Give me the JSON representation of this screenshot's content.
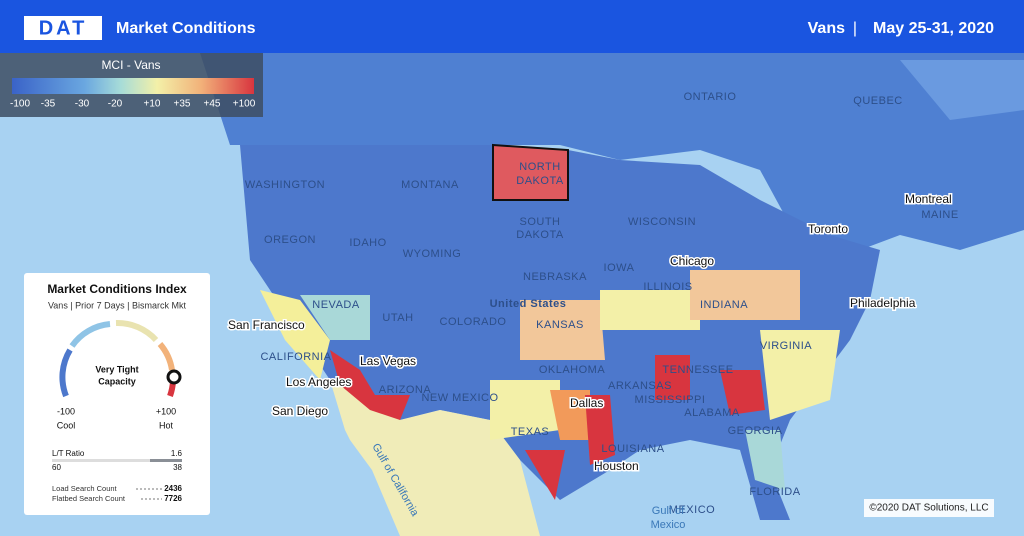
{
  "header": {
    "logo": "DAT",
    "title": "Market Conditions",
    "equipment": "Vans",
    "separator": "|",
    "date_range": "May 25-31, 2020"
  },
  "legend": {
    "title": "MCI - Vans",
    "scale": [
      "-100",
      "-35",
      "-30",
      "-20",
      "+10",
      "+35",
      "+45",
      "+100"
    ]
  },
  "map": {
    "labels": [
      "ONTARIO",
      "QUEBEC",
      "WASHINGTON",
      "MONTANA",
      "NORTH",
      "DAKOTA",
      "SOUTH",
      "DAKOTA",
      "OREGON",
      "IDAHO",
      "WYOMING",
      "NEBRASKA",
      "NEVADA",
      "UTAH",
      "COLORADO",
      "KANSAS",
      "United States",
      "CALIFORNIA",
      "ARIZONA",
      "NEW MEXICO",
      "OKLAHOMA",
      "TEXAS",
      "WISCONSIN",
      "IOWA",
      "ILLINOIS",
      "INDIANA",
      "TENNESSEE",
      "ARKANSAS",
      "MISSISSIPPI",
      "ALABAMA",
      "GEORGIA",
      "FLORIDA",
      "LOUISIANA",
      "VIRGINIA",
      "MAINE",
      "MEXICO"
    ],
    "cities": [
      "San Francisco",
      "Las Vegas",
      "Los Angeles",
      "San Diego",
      "Dallas",
      "Houston",
      "Chicago",
      "Toronto",
      "Montreal",
      "Philadelphia"
    ],
    "water": [
      "Gulf of California",
      "Gulf of",
      "Mexico"
    ]
  },
  "panel": {
    "title": "Market Conditions Index",
    "subtitle": "Vans | Prior 7 Days | Bismarck Mkt",
    "gauge_label": [
      "Very Tight",
      "Capacity"
    ],
    "min_label": "-100",
    "max_label": "+100",
    "cool": "Cool",
    "hot": "Hot",
    "lt_ratio_label": "L/T Ratio",
    "lt_ratio": "1.6",
    "ratio_left": "60",
    "ratio_right": "38",
    "load_search_label": "Load Search Count",
    "load_search": "2436",
    "flatbed_search_label": "Flatbed Search Count",
    "flatbed_search": "7726"
  },
  "copyright": "©2020 DAT Solutions, LLC"
}
